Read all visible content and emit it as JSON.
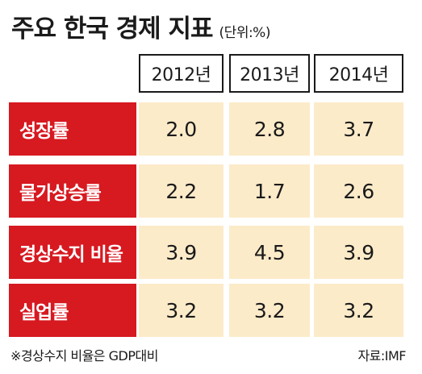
{
  "chart_data": {
    "type": "table",
    "title": "주요 한국 경제 지표",
    "unit": "(단위:%)",
    "columns": [
      "2012년",
      "2013년",
      "2014년"
    ],
    "rows": [
      {
        "label": "성장률",
        "values": [
          "2.0",
          "2.8",
          "3.7"
        ]
      },
      {
        "label": "물가상승률",
        "values": [
          "2.2",
          "1.7",
          "2.6"
        ]
      },
      {
        "label": "경상수지 비율",
        "values": [
          "3.9",
          "4.5",
          "3.9"
        ]
      },
      {
        "label": "실업률",
        "values": [
          "3.2",
          "3.2",
          "3.2"
        ]
      }
    ],
    "footnote": "※경상수지 비율은 GDP대비",
    "source": "자료:IMF"
  },
  "colors": {
    "label_background": "#d71920",
    "value_background": "#fcebc9"
  }
}
